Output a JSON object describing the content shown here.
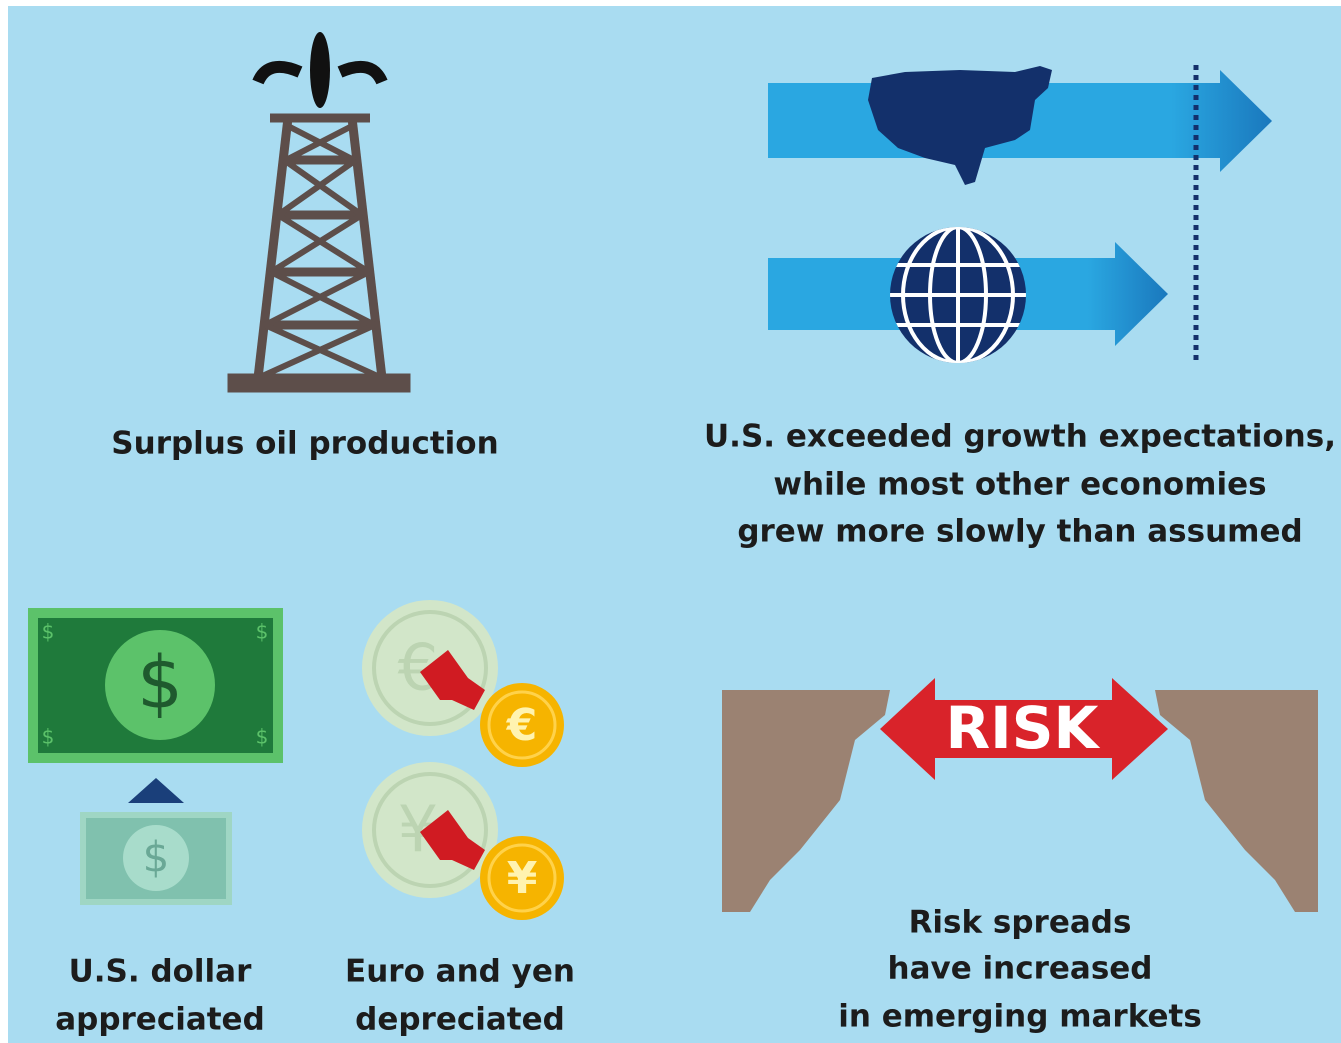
{
  "panels": [
    {
      "caption": [
        "Surplus oil production"
      ]
    },
    {
      "caption": [
        "U.S. exceeded growth expectations,",
        "while most other economies",
        "grew more slowly than assumed"
      ]
    },
    {
      "caption": [
        "U.S. dollar",
        "appreciated"
      ]
    },
    {
      "caption": [
        "Euro and yen",
        "depreciated"
      ]
    },
    {
      "caption": [
        "Risk spreads",
        "have increased",
        "in emerging markets"
      ],
      "icon_text": "RISK"
    }
  ],
  "symbols": {
    "dollar": "$",
    "euro": "€",
    "yen": "¥"
  }
}
